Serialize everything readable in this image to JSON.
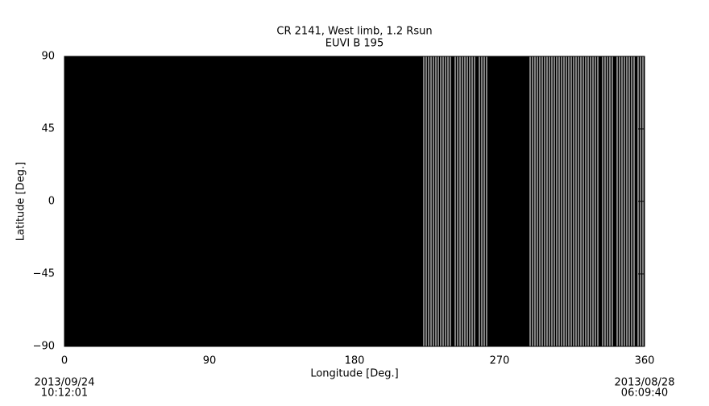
{
  "chart_data": {
    "type": "stripes",
    "title": "CR 2141, West limb, 1.2 Rsun",
    "subtitle": "EUVI B 195",
    "x_label": "Longitude [Deg.]",
    "y_label": "Latitude [Deg.]",
    "start_date": "2013/09/24",
    "start_time": "10:12:01",
    "end_date": "2013/08/28",
    "end_time": "06:09:40",
    "xlim": [
      0,
      360
    ],
    "ylim": [
      -90,
      90
    ],
    "xticks": [
      0,
      90,
      180,
      270,
      360
    ],
    "yticks": [
      90,
      45,
      0,
      {
        "value": -45,
        "label": "−45"
      },
      {
        "value": -90,
        "label": "−90"
      }
    ],
    "background": "#000000",
    "color": "#ffffff",
    "x": [
      223,
      224.5,
      226,
      227.5,
      229,
      230.5,
      232,
      233.5,
      235,
      236.5,
      238,
      239.5,
      242.5,
      244,
      245.5,
      247,
      248.5,
      250,
      251.5,
      253,
      254.5,
      257.5,
      259,
      260.5,
      262,
      289,
      290.5,
      292,
      293.5,
      295,
      296.5,
      298,
      299.5,
      301,
      302.5,
      304,
      305.5,
      307,
      308.5,
      310,
      311.5,
      313,
      314.5,
      316,
      317.5,
      319,
      320.5,
      322,
      323.5,
      325,
      326.5,
      328,
      329.5,
      331,
      334,
      335.5,
      337,
      338.5,
      340,
      343,
      344.5,
      346,
      347.5,
      349,
      350.5,
      352,
      353.5,
      356,
      357.5,
      359
    ]
  }
}
